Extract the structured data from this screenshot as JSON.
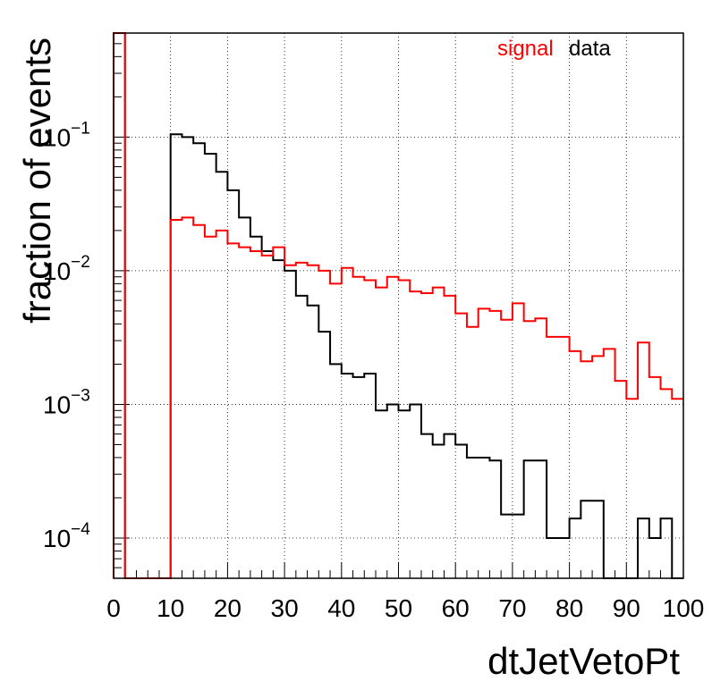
{
  "chart_data": {
    "type": "line",
    "style": "step-histogram",
    "xlabel": "dtJetVetoPt",
    "ylabel": "fraction of events",
    "xlim": [
      0,
      100
    ],
    "ylim": [
      5e-05,
      0.6
    ],
    "yscale": "log",
    "grid": true,
    "bin_width": 2,
    "x_ticks": [
      "0",
      "10",
      "20",
      "30",
      "40",
      "50",
      "60",
      "70",
      "80",
      "90",
      "100"
    ],
    "x_tick_values": [
      0,
      10,
      20,
      30,
      40,
      50,
      60,
      70,
      80,
      90,
      100
    ],
    "y_ticks": [
      {
        "value": 0.0001,
        "base": "10",
        "exp": "−4"
      },
      {
        "value": 0.001,
        "base": "10",
        "exp": "−3"
      },
      {
        "value": 0.01,
        "base": "10",
        "exp": "−2"
      },
      {
        "value": 0.1,
        "base": "10",
        "exp": "−1"
      }
    ],
    "legend": {
      "position": "top-right",
      "entries": [
        {
          "label": "signal",
          "color": "#ff0000"
        },
        {
          "label": "data",
          "color": "#000000"
        }
      ]
    },
    "series": [
      {
        "name": "data",
        "color": "#000000",
        "x": [
          0,
          2,
          4,
          6,
          8,
          10,
          12,
          14,
          16,
          18,
          20,
          22,
          24,
          26,
          28,
          30,
          32,
          34,
          36,
          38,
          40,
          42,
          44,
          46,
          48,
          50,
          52,
          54,
          56,
          58,
          60,
          62,
          64,
          66,
          68,
          70,
          72,
          74,
          76,
          78,
          80,
          82,
          84,
          86,
          88,
          90,
          92,
          94,
          96,
          98
        ],
        "values": [
          0.6,
          5e-05,
          5e-05,
          5e-05,
          5e-05,
          0.105,
          0.1,
          0.09,
          0.075,
          0.055,
          0.04,
          0.025,
          0.018,
          0.014,
          0.012,
          0.01,
          0.0065,
          0.0055,
          0.0035,
          0.002,
          0.0017,
          0.0016,
          0.0017,
          0.0009,
          0.001,
          0.0009,
          0.001,
          0.0006,
          0.0005,
          0.0006,
          0.0005,
          0.0004,
          0.0004,
          0.00038,
          0.00015,
          0.00015,
          0.00038,
          0.00038,
          0.0001,
          0.0001,
          0.00014,
          0.00019,
          0.00019,
          5e-05,
          5e-05,
          5e-05,
          0.00014,
          0.0001,
          0.00014,
          5e-05
        ]
      },
      {
        "name": "signal",
        "color": "#ff0000",
        "x": [
          0,
          2,
          4,
          6,
          8,
          10,
          12,
          14,
          16,
          18,
          20,
          22,
          24,
          26,
          28,
          30,
          32,
          34,
          36,
          38,
          40,
          42,
          44,
          46,
          48,
          50,
          52,
          54,
          56,
          58,
          60,
          62,
          64,
          66,
          68,
          70,
          72,
          74,
          76,
          78,
          80,
          82,
          84,
          86,
          88,
          90,
          92,
          94,
          96,
          98
        ],
        "values": [
          0.6,
          5e-05,
          5e-05,
          5e-05,
          5e-05,
          0.024,
          0.025,
          0.022,
          0.018,
          0.02,
          0.016,
          0.015,
          0.014,
          0.013,
          0.015,
          0.011,
          0.0115,
          0.011,
          0.01,
          0.008,
          0.0105,
          0.009,
          0.0085,
          0.0075,
          0.009,
          0.0085,
          0.007,
          0.0068,
          0.0075,
          0.0065,
          0.0048,
          0.0038,
          0.0052,
          0.005,
          0.0043,
          0.0057,
          0.0042,
          0.0044,
          0.0032,
          0.0032,
          0.0025,
          0.0021,
          0.0023,
          0.0026,
          0.0015,
          0.0011,
          0.0029,
          0.0016,
          0.0013,
          0.0011
        ]
      }
    ]
  }
}
